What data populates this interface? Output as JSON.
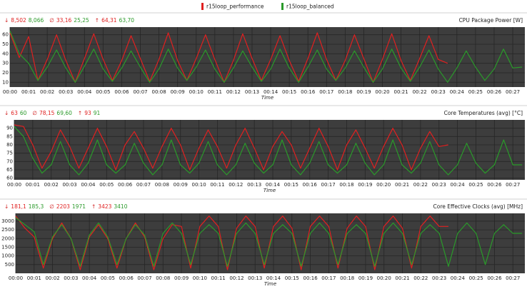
{
  "legend": [
    {
      "name": "r15loop_performance",
      "color": "#e02020"
    },
    {
      "name": "r15loop_balanced",
      "color": "#2a9a2a"
    }
  ],
  "chart_data": [
    {
      "type": "line",
      "title": "CPU Package Power [W]",
      "xlabel": "Time",
      "stats": [
        {
          "symbol": "↓",
          "values": [
            "8,502",
            "8,066"
          ]
        },
        {
          "symbol": "∅",
          "values": [
            "33,16",
            "25,25"
          ]
        },
        {
          "symbol": "↑",
          "values": [
            "64,31",
            "63,70"
          ]
        }
      ],
      "xlim": [
        0,
        27.65
      ],
      "ylim": [
        5,
        68
      ],
      "yticks": [
        10,
        20,
        30,
        40,
        50,
        60
      ],
      "grid": true,
      "xticks": [
        {
          "value": 0,
          "label": "00:00"
        },
        {
          "value": 1,
          "label": "00:01"
        },
        {
          "value": 2,
          "label": "00:02"
        },
        {
          "value": 3,
          "label": "00:03"
        },
        {
          "value": 4,
          "label": "00:04"
        },
        {
          "value": 5,
          "label": "00:05"
        },
        {
          "value": 6,
          "label": "00:06"
        },
        {
          "value": 7,
          "label": "00:07"
        },
        {
          "value": 8,
          "label": "00:08"
        },
        {
          "value": 9,
          "label": "00:09"
        },
        {
          "value": 10,
          "label": "00:10"
        },
        {
          "value": 11,
          "label": "00:11"
        },
        {
          "value": 12,
          "label": "00:12"
        },
        {
          "value": 13,
          "label": "00:13"
        },
        {
          "value": 14,
          "label": "00:14"
        },
        {
          "value": 15,
          "label": "00:15"
        },
        {
          "value": 16,
          "label": "00:16"
        },
        {
          "value": 17,
          "label": "00:17"
        },
        {
          "value": 18,
          "label": "00:18"
        },
        {
          "value": 19,
          "label": "00:19"
        },
        {
          "value": 20,
          "label": "00:20"
        },
        {
          "value": 21,
          "label": "00:21"
        },
        {
          "value": 22,
          "label": "00:22"
        },
        {
          "value": 23,
          "label": "00:23"
        },
        {
          "value": 24,
          "label": "00:24"
        },
        {
          "value": 25,
          "label": "00:25"
        },
        {
          "value": 26,
          "label": "00:26"
        },
        {
          "value": 27,
          "label": "00:27"
        }
      ],
      "series": [
        {
          "x": [
            0,
            0.5,
            1,
            1.5,
            2,
            2.5,
            3,
            3.5,
            4,
            4.5,
            5,
            5.5,
            6,
            6.5,
            7,
            7.5,
            8,
            8.5,
            9,
            9.5,
            10,
            10.5,
            11,
            11.5,
            12,
            12.5,
            13,
            13.5,
            14,
            14.5,
            15,
            15.5,
            16,
            16.5,
            17,
            17.5,
            18,
            18.5,
            19,
            19.5,
            20,
            20.5,
            21,
            21.5,
            22,
            22.5,
            23,
            23.5
          ],
          "values": [
            62,
            36,
            58,
            12,
            34,
            60,
            33,
            10,
            35,
            61,
            34,
            12,
            33,
            59,
            35,
            11,
            34,
            62,
            33,
            12,
            35,
            60,
            34,
            10,
            33,
            61,
            35,
            12,
            34,
            59,
            33,
            11,
            35,
            62,
            34,
            12,
            33,
            60,
            35,
            10,
            34,
            61,
            33,
            12,
            35,
            59,
            34,
            30
          ]
        },
        {
          "x": [
            0,
            0.5,
            1,
            1.5,
            2,
            2.5,
            3,
            3.5,
            4,
            4.5,
            5,
            5.5,
            6,
            6.5,
            7,
            7.5,
            8,
            8.5,
            9,
            9.5,
            10,
            10.5,
            11,
            11.5,
            12,
            12.5,
            13,
            13.5,
            14,
            14.5,
            15,
            15.5,
            16,
            16.5,
            17,
            17.5,
            18,
            18.5,
            19,
            19.5,
            20,
            20.5,
            21,
            21.5,
            22,
            22.5,
            23,
            23.5,
            24,
            24.5,
            25,
            25.5,
            26,
            26.5,
            27,
            27.5
          ],
          "values": [
            64,
            40,
            30,
            12,
            26,
            44,
            25,
            10,
            27,
            45,
            24,
            11,
            25,
            43,
            26,
            10,
            24,
            45,
            25,
            12,
            26,
            44,
            24,
            10,
            25,
            43,
            26,
            11,
            24,
            45,
            25,
            10,
            26,
            44,
            24,
            12,
            25,
            43,
            26,
            10,
            24,
            45,
            25,
            11,
            26,
            44,
            24,
            10,
            25,
            43,
            26,
            12,
            24,
            45,
            25,
            26
          ]
        }
      ]
    },
    {
      "type": "line",
      "title": "Core Temperatures (avg) [°C]",
      "xlabel": "Time",
      "stats": [
        {
          "symbol": "↓",
          "values": [
            "63",
            "60"
          ]
        },
        {
          "symbol": "∅",
          "values": [
            "78,15",
            "69,60"
          ]
        },
        {
          "symbol": "↑",
          "values": [
            "93",
            "91"
          ]
        }
      ],
      "xlim": [
        0,
        27.65
      ],
      "ylim": [
        59,
        95
      ],
      "yticks": [
        60,
        65,
        70,
        75,
        80,
        85,
        90
      ],
      "grid": true,
      "xticks": [
        {
          "value": 0,
          "label": "00:00"
        },
        {
          "value": 1,
          "label": "00:01"
        },
        {
          "value": 2,
          "label": "00:02"
        },
        {
          "value": 3,
          "label": "00:03"
        },
        {
          "value": 4,
          "label": "00:04"
        },
        {
          "value": 5,
          "label": "00:05"
        },
        {
          "value": 6,
          "label": "00:06"
        },
        {
          "value": 7,
          "label": "00:07"
        },
        {
          "value": 8,
          "label": "00:08"
        },
        {
          "value": 9,
          "label": "00:09"
        },
        {
          "value": 10,
          "label": "00:10"
        },
        {
          "value": 11,
          "label": "00:11"
        },
        {
          "value": 12,
          "label": "00:12"
        },
        {
          "value": 13,
          "label": "00:13"
        },
        {
          "value": 14,
          "label": "00:14"
        },
        {
          "value": 15,
          "label": "00:15"
        },
        {
          "value": 16,
          "label": "00:16"
        },
        {
          "value": 17,
          "label": "00:17"
        },
        {
          "value": 18,
          "label": "00:18"
        },
        {
          "value": 19,
          "label": "00:19"
        },
        {
          "value": 20,
          "label": "00:20"
        },
        {
          "value": 21,
          "label": "00:21"
        },
        {
          "value": 22,
          "label": "00:22"
        },
        {
          "value": 23,
          "label": "00:23"
        },
        {
          "value": 24,
          "label": "00:24"
        },
        {
          "value": 25,
          "label": "00:25"
        },
        {
          "value": 26,
          "label": "00:26"
        },
        {
          "value": 27,
          "label": "00:27"
        }
      ],
      "series": [
        {
          "x": [
            0,
            0.5,
            1,
            1.5,
            2,
            2.5,
            3,
            3.5,
            4,
            4.5,
            5,
            5.5,
            6,
            6.5,
            7,
            7.5,
            8,
            8.5,
            9,
            9.5,
            10,
            10.5,
            11,
            11.5,
            12,
            12.5,
            13,
            13.5,
            14,
            14.5,
            15,
            15.5,
            16,
            16.5,
            17,
            17.5,
            18,
            18.5,
            19,
            19.5,
            20,
            20.5,
            21,
            21.5,
            22,
            22.5,
            23,
            23.5
          ],
          "values": [
            92,
            91,
            80,
            66,
            76,
            89,
            79,
            66,
            78,
            90,
            79,
            65,
            80,
            88,
            78,
            66,
            79,
            90,
            80,
            65,
            78,
            89,
            79,
            66,
            80,
            90,
            78,
            65,
            79,
            88,
            80,
            66,
            78,
            90,
            79,
            65,
            80,
            89,
            78,
            66,
            79,
            90,
            80,
            65,
            78,
            88,
            79,
            80
          ]
        },
        {
          "x": [
            0,
            0.5,
            1,
            1.5,
            2,
            2.5,
            3,
            3.5,
            4,
            4.5,
            5,
            5.5,
            6,
            6.5,
            7,
            7.5,
            8,
            8.5,
            9,
            9.5,
            10,
            10.5,
            11,
            11.5,
            12,
            12.5,
            13,
            13.5,
            14,
            14.5,
            15,
            15.5,
            16,
            16.5,
            17,
            17.5,
            18,
            18.5,
            19,
            19.5,
            20,
            20.5,
            21,
            21.5,
            22,
            22.5,
            23,
            23.5,
            24,
            24.5,
            25,
            25.5,
            26,
            26.5,
            27,
            27.5
          ],
          "values": [
            91,
            85,
            72,
            63,
            68,
            82,
            68,
            62,
            69,
            83,
            68,
            63,
            68,
            81,
            69,
            62,
            68,
            83,
            68,
            63,
            69,
            82,
            68,
            62,
            68,
            81,
            69,
            63,
            68,
            83,
            68,
            62,
            69,
            82,
            68,
            63,
            68,
            81,
            69,
            62,
            68,
            83,
            68,
            63,
            69,
            82,
            68,
            62,
            68,
            81,
            69,
            63,
            68,
            83,
            68,
            68
          ]
        }
      ]
    },
    {
      "type": "line",
      "title": "Core Effective Clocks (avg) [MHz]",
      "xlabel": "Time",
      "stats": [
        {
          "symbol": "↓",
          "values": [
            "181,1",
            "185,3"
          ]
        },
        {
          "symbol": "∅",
          "values": [
            "2203",
            "1971"
          ]
        },
        {
          "symbol": "↑",
          "values": [
            "3423",
            "3410"
          ]
        }
      ],
      "xlim": [
        0,
        27.65
      ],
      "ylim": [
        0,
        3450
      ],
      "yticks": [
        500,
        1000,
        1500,
        2000,
        2500,
        3000
      ],
      "grid": true,
      "xticks": [
        {
          "value": 0,
          "label": "00:00"
        },
        {
          "value": 1,
          "label": "00:01"
        },
        {
          "value": 2,
          "label": "00:02"
        },
        {
          "value": 3,
          "label": "00:03"
        },
        {
          "value": 4,
          "label": "00:04"
        },
        {
          "value": 5,
          "label": "00:05"
        },
        {
          "value": 6,
          "label": "00:06"
        },
        {
          "value": 7,
          "label": "00:07"
        },
        {
          "value": 8,
          "label": "00:08"
        },
        {
          "value": 9,
          "label": "00:09"
        },
        {
          "value": 10,
          "label": "00:10"
        },
        {
          "value": 11,
          "label": "00:11"
        },
        {
          "value": 12,
          "label": "00:12"
        },
        {
          "value": 13,
          "label": "00:13"
        },
        {
          "value": 14,
          "label": "00:14"
        },
        {
          "value": 15,
          "label": "00:15"
        },
        {
          "value": 16,
          "label": "00:16"
        },
        {
          "value": 17,
          "label": "00:17"
        },
        {
          "value": 18,
          "label": "00:18"
        },
        {
          "value": 19,
          "label": "00:19"
        },
        {
          "value": 20,
          "label": "00:20"
        },
        {
          "value": 21,
          "label": "00:21"
        },
        {
          "value": 22,
          "label": "00:22"
        },
        {
          "value": 23,
          "label": "00:23"
        },
        {
          "value": 24,
          "label": "00:24"
        },
        {
          "value": 25,
          "label": "00:25"
        },
        {
          "value": 26,
          "label": "00:26"
        },
        {
          "value": 27,
          "label": "00:27"
        }
      ],
      "series": [
        {
          "x": [
            0,
            0.5,
            1,
            1.5,
            2,
            2.5,
            3,
            3.5,
            4,
            4.5,
            5,
            5.5,
            6,
            6.5,
            7,
            7.5,
            8,
            8.5,
            9,
            9.5,
            10,
            10.5,
            11,
            11.5,
            12,
            12.5,
            13,
            13.5,
            14,
            14.5,
            15,
            15.5,
            16,
            16.5,
            17,
            17.5,
            18,
            18.5,
            19,
            19.5,
            20,
            20.5,
            21,
            21.5,
            22,
            22.5,
            23,
            23.5
          ],
          "values": [
            3300,
            2600,
            2100,
            300,
            2000,
            2900,
            2000,
            200,
            2100,
            2800,
            2000,
            300,
            2000,
            2900,
            2100,
            200,
            2000,
            2800,
            2700,
            300,
            2700,
            3300,
            2700,
            200,
            2600,
            3300,
            2700,
            300,
            2700,
            3300,
            2600,
            200,
            2700,
            3300,
            2700,
            300,
            2600,
            3300,
            2700,
            200,
            2700,
            3300,
            2600,
            300,
            2700,
            3300,
            2700,
            2700
          ]
        },
        {
          "x": [
            0,
            0.5,
            1,
            1.5,
            2,
            2.5,
            3,
            3.5,
            4,
            4.5,
            5,
            5.5,
            6,
            6.5,
            7,
            7.5,
            8,
            8.5,
            9,
            9.5,
            10,
            10.5,
            11,
            11.5,
            12,
            12.5,
            13,
            13.5,
            14,
            14.5,
            15,
            15.5,
            16,
            16.5,
            17,
            17.5,
            18,
            18.5,
            19,
            19.5,
            20,
            20.5,
            21,
            21.5,
            22,
            22.5,
            23,
            23.5,
            24,
            24.5,
            25,
            25.5,
            26,
            26.5,
            27,
            27.5
          ],
          "values": [
            3200,
            2800,
            2400,
            500,
            2100,
            2800,
            2000,
            400,
            2200,
            2900,
            2100,
            500,
            2000,
            2800,
            2200,
            400,
            2300,
            2900,
            2300,
            500,
            2300,
            2800,
            2300,
            400,
            2300,
            2900,
            2300,
            500,
            2300,
            2800,
            2300,
            400,
            2300,
            2900,
            2300,
            500,
            2300,
            2800,
            2300,
            400,
            2300,
            2900,
            2300,
            500,
            2300,
            2800,
            2300,
            400,
            2300,
            2900,
            2300,
            500,
            2300,
            2800,
            2300,
            2300
          ]
        }
      ]
    }
  ]
}
